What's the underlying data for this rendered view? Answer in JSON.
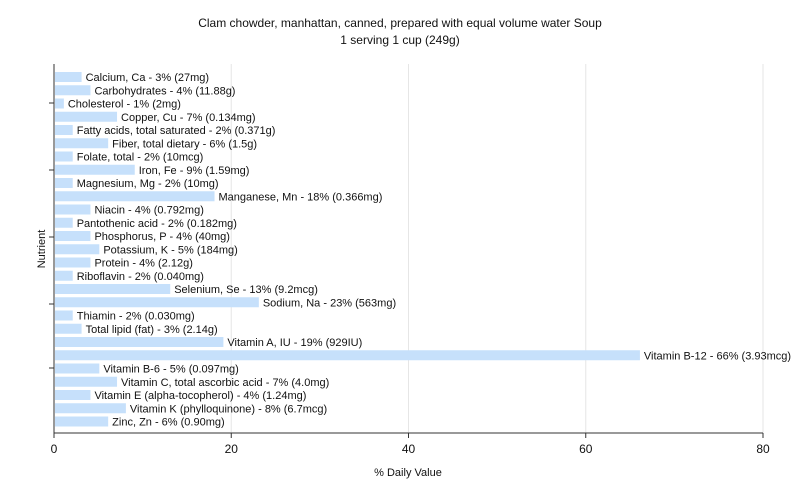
{
  "chart_data": {
    "type": "bar",
    "orientation": "horizontal",
    "title": "Clam chowder, manhattan, canned, prepared with equal volume water Soup",
    "subtitle": "1 serving 1 cup (249g)",
    "xlabel": "% Daily Value",
    "ylabel": "Nutrient",
    "xlim": [
      0,
      80
    ],
    "xticks": [
      0,
      20,
      40,
      60,
      80
    ],
    "grid": true,
    "bar_color": "#c6e0fb",
    "categories": [
      "Calcium, Ca - 3% (27mg)",
      "Carbohydrates - 4% (11.88g)",
      "Cholesterol - 1% (2mg)",
      "Copper, Cu - 7% (0.134mg)",
      "Fatty acids, total saturated - 2% (0.371g)",
      "Fiber, total dietary - 6% (1.5g)",
      "Folate, total - 2% (10mcg)",
      "Iron, Fe - 9% (1.59mg)",
      "Magnesium, Mg - 2% (10mg)",
      "Manganese, Mn - 18% (0.366mg)",
      "Niacin - 4% (0.792mg)",
      "Pantothenic acid - 2% (0.182mg)",
      "Phosphorus, P - 4% (40mg)",
      "Potassium, K - 5% (184mg)",
      "Protein - 4% (2.12g)",
      "Riboflavin - 2% (0.040mg)",
      "Selenium, Se - 13% (9.2mcg)",
      "Sodium, Na - 23% (563mg)",
      "Thiamin - 2% (0.030mg)",
      "Total lipid (fat) - 3% (2.14g)",
      "Vitamin A, IU - 19% (929IU)",
      "Vitamin B-12 - 66% (3.93mcg)",
      "Vitamin B-6 - 5% (0.097mg)",
      "Vitamin C, total ascorbic acid - 7% (4.0mg)",
      "Vitamin E (alpha-tocopherol) - 4% (1.24mg)",
      "Vitamin K (phylloquinone) - 8% (6.7mcg)",
      "Zinc, Zn - 6% (0.90mg)"
    ],
    "values": [
      3,
      4,
      1,
      7,
      2,
      6,
      2,
      9,
      2,
      18,
      4,
      2,
      4,
      5,
      4,
      2,
      13,
      23,
      2,
      3,
      19,
      66,
      5,
      7,
      4,
      8,
      6
    ]
  }
}
